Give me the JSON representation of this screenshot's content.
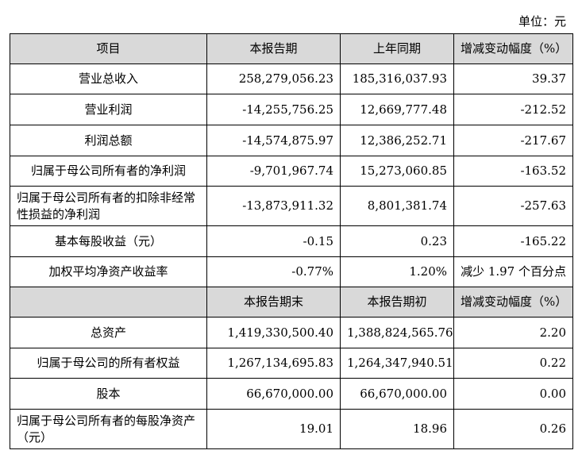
{
  "unit_label": "单位：元",
  "headers": {
    "item": "项目",
    "current": "本报告期",
    "prior": "上年同期",
    "change": "增减变动幅度（%）"
  },
  "headers2": {
    "blank": "",
    "current": "本报告期末",
    "prior": "本报告期初",
    "change": "增减变动幅度（%）"
  },
  "rows": [
    {
      "item": "营业总收入",
      "current": "258,279,056.23",
      "prior": "185,316,037.93",
      "change": "39.37"
    },
    {
      "item": "营业利润",
      "current": "-14,255,756.25",
      "prior": "12,669,777.48",
      "change": "-212.52"
    },
    {
      "item": "利润总额",
      "current": "-14,574,875.97",
      "prior": "12,386,252.71",
      "change": "-217.67"
    },
    {
      "item": "归属于母公司所有者的净利润",
      "current": "-9,701,967.74",
      "prior": "15,273,060.85",
      "change": "-163.52"
    },
    {
      "item": "归属于母公司所有者的扣除非经常性损益的净利润",
      "current": "-13,873,911.32",
      "prior": "8,801,381.74",
      "change": "-257.63"
    },
    {
      "item": "基本每股收益（元）",
      "current": "-0.15",
      "prior": "0.23",
      "change": "-165.22"
    },
    {
      "item": "加权平均净资产收益率",
      "current": "-0.77%",
      "prior": "1.20%",
      "change": "减少 1.97 个百分点"
    }
  ],
  "rows2": [
    {
      "item": "总资产",
      "current": "1,419,330,500.40",
      "prior": "1,388,824,565.76",
      "change": "2.20"
    },
    {
      "item": "归属于母公司的所有者权益",
      "current": "1,267,134,695.83",
      "prior": "1,264,347,940.51",
      "change": "0.22"
    },
    {
      "item": "股本",
      "current": "66,670,000.00",
      "prior": "66,670,000.00",
      "change": "0.00"
    },
    {
      "item": "归属于母公司所有者的每股净资产（元）",
      "current": "19.01",
      "prior": "18.96",
      "change": "0.26"
    }
  ]
}
